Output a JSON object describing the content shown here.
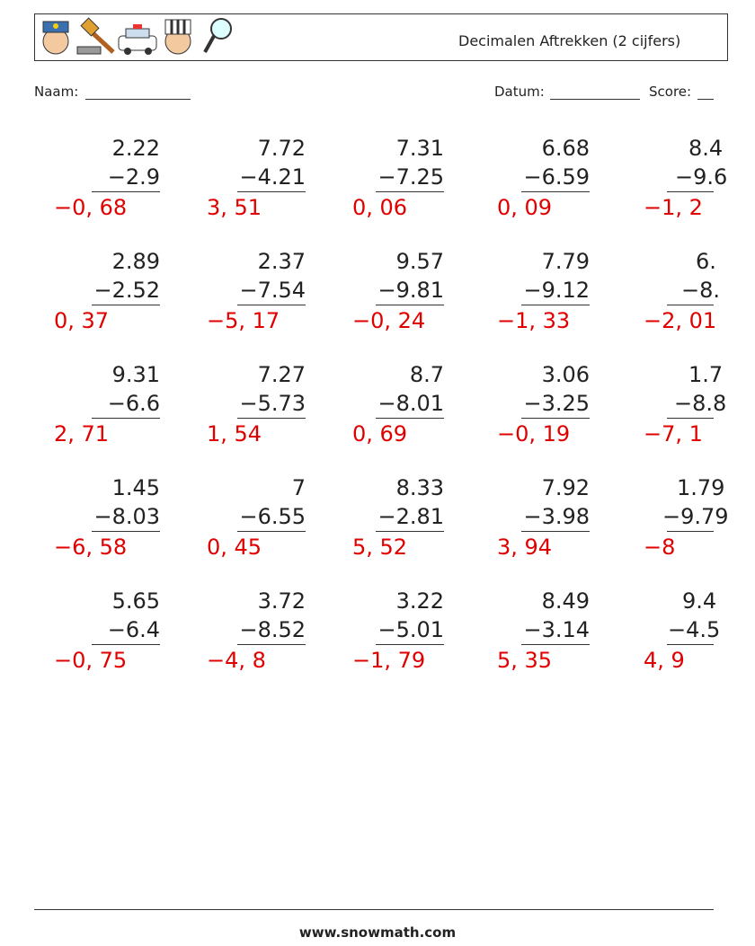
{
  "header": {
    "title": "Decimalen Aftrekken (2 cijfers)"
  },
  "fields": {
    "name": "Naam:",
    "date": "Datum:",
    "score": "Score:"
  },
  "problems": [
    [
      {
        "a": "2.22",
        "b": "−2.9",
        "answer": "−0, 68"
      },
      {
        "a": "7.72",
        "b": "−4.21",
        "answer": "3, 51"
      },
      {
        "a": "7.31",
        "b": "−7.25",
        "answer": "0, 06"
      },
      {
        "a": "6.68",
        "b": "−6.59",
        "answer": "0, 09"
      },
      {
        "a": "8.4",
        "b": "−9.6",
        "answer": "−1, 2"
      }
    ],
    [
      {
        "a": "2.89",
        "b": "−2.52",
        "answer": "0, 37"
      },
      {
        "a": "2.37",
        "b": "−7.54",
        "answer": "−5, 17"
      },
      {
        "a": "9.57",
        "b": "−9.81",
        "answer": "−0, 24"
      },
      {
        "a": "7.79",
        "b": "−9.12",
        "answer": "−1, 33"
      },
      {
        "a": "6.",
        "b": "−8.",
        "answer": "−2, 01"
      }
    ],
    [
      {
        "a": "9.31",
        "b": "−6.6",
        "answer": "2, 71"
      },
      {
        "a": "7.27",
        "b": "−5.73",
        "answer": "1, 54"
      },
      {
        "a": "8.7",
        "b": "−8.01",
        "answer": "0, 69"
      },
      {
        "a": "3.06",
        "b": "−3.25",
        "answer": "−0, 19"
      },
      {
        "a": "1.7",
        "b": "−8.8",
        "answer": "−7, 1"
      }
    ],
    [
      {
        "a": "1.45",
        "b": "−8.03",
        "answer": "−6, 58"
      },
      {
        "a": "7",
        "b": "−6.55",
        "answer": "0, 45"
      },
      {
        "a": "8.33",
        "b": "−2.81",
        "answer": "5, 52"
      },
      {
        "a": "7.92",
        "b": "−3.98",
        "answer": "3, 94"
      },
      {
        "a": "1.79",
        "b": "−9.79",
        "answer": "−8"
      }
    ],
    [
      {
        "a": "5.65",
        "b": "−6.4",
        "answer": "−0, 75"
      },
      {
        "a": "3.72",
        "b": "−8.52",
        "answer": "−4, 8"
      },
      {
        "a": "3.22",
        "b": "−5.01",
        "answer": "−1, 79"
      },
      {
        "a": "8.49",
        "b": "−3.14",
        "answer": "5, 35"
      },
      {
        "a": "9.4",
        "b": "−4.5",
        "answer": "4, 9"
      }
    ]
  ],
  "footer": {
    "url": "www.snowmath.com"
  }
}
